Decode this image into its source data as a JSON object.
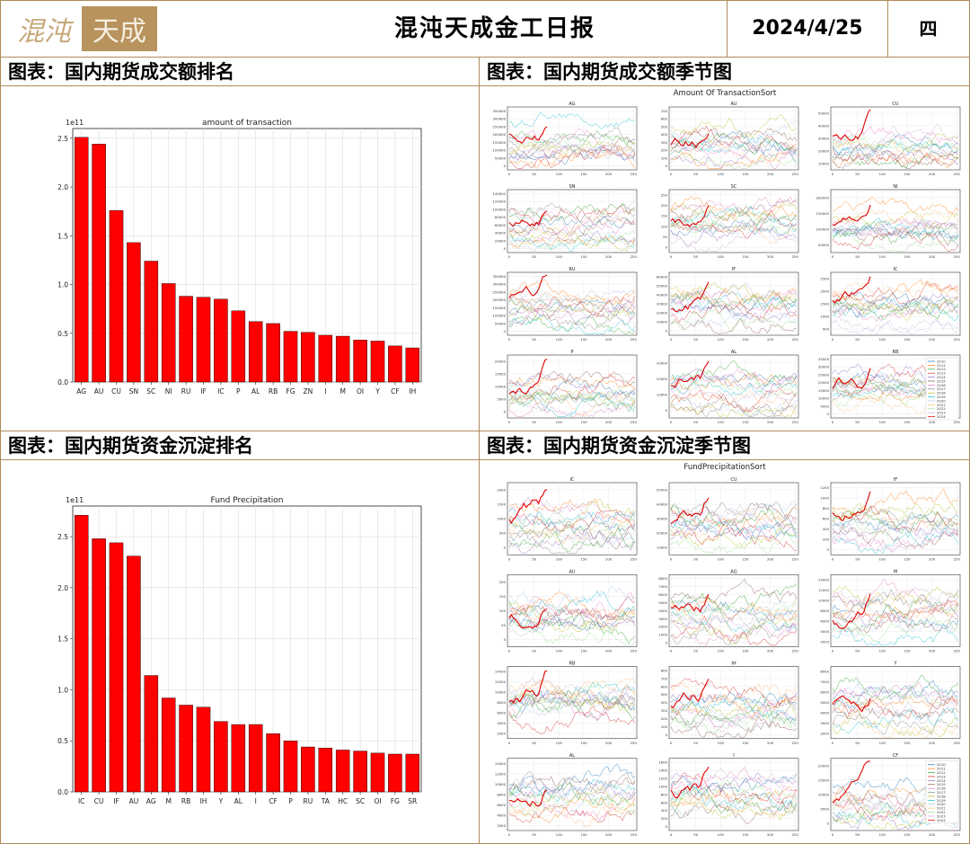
{
  "header": {
    "logo_text": "混沌天成",
    "title": "混沌天成金工日报",
    "date": "2024/4/25",
    "weekday": "四"
  },
  "panels": {
    "top_left_title": "图表：国内期货成交额排名",
    "top_right_title": "图表：国内期货成交额季节图",
    "bottom_left_title": "图表：国内期货资金沉淀排名",
    "bottom_right_title": "图表：国内期货资金沉淀季节图"
  },
  "colors": {
    "bar": "#ff0000",
    "frame": "#b08a5a",
    "latest_line": "#e00000"
  },
  "chart_data": [
    {
      "type": "bar",
      "title": "amount of transaction",
      "exponent_label": "1e11",
      "categories": [
        "AG",
        "AU",
        "CU",
        "SN",
        "SC",
        "NI",
        "RU",
        "IF",
        "IC",
        "P",
        "AL",
        "RB",
        "FG",
        "ZN",
        "I",
        "M",
        "OI",
        "Y",
        "CF",
        "IH"
      ],
      "values": [
        2.51,
        2.44,
        1.76,
        1.43,
        1.24,
        1.01,
        0.88,
        0.87,
        0.85,
        0.73,
        0.62,
        0.6,
        0.52,
        0.51,
        0.48,
        0.47,
        0.43,
        0.42,
        0.37,
        0.35
      ],
      "ylim": [
        0,
        2.6
      ],
      "yticks": [
        "0.0",
        "0.5",
        "1.0",
        "1.5",
        "2.0",
        "2.5"
      ],
      "grid": true
    },
    {
      "type": "bar",
      "title": "Fund Precipitation",
      "exponent_label": "1e11",
      "categories": [
        "IC",
        "CU",
        "IF",
        "AU",
        "AG",
        "M",
        "RB",
        "IH",
        "Y",
        "AL",
        "I",
        "CF",
        "P",
        "RU",
        "TA",
        "HC",
        "SC",
        "OI",
        "FG",
        "SR"
      ],
      "values": [
        2.71,
        2.48,
        2.44,
        2.31,
        1.14,
        0.92,
        0.85,
        0.83,
        0.69,
        0.66,
        0.66,
        0.57,
        0.5,
        0.44,
        0.43,
        0.41,
        0.4,
        0.38,
        0.37,
        0.37
      ],
      "ylim": [
        0,
        2.8
      ],
      "yticks": [
        "0.0",
        "0.5",
        "1.0",
        "1.5",
        "2.0",
        "2.5"
      ],
      "grid": true
    },
    {
      "type": "line",
      "title": "Amount Of TransactionSort",
      "subplots": [
        {
          "name": "AG",
          "yticks": [
            "0",
            "50000",
            "100000",
            "150000",
            "200000",
            "250000",
            "300000",
            "350000"
          ]
        },
        {
          "name": "AU",
          "yticks": [
            "0",
            "100",
            "200",
            "300",
            "400",
            "500",
            "600",
            "700"
          ]
        },
        {
          "name": "CU",
          "yticks": [
            "10000",
            "20000",
            "30000",
            "40000",
            "50000"
          ]
        },
        {
          "name": "SN",
          "yticks": [
            "0",
            "20000",
            "40000",
            "60000",
            "80000",
            "100000",
            "120000",
            "140000"
          ]
        },
        {
          "name": "SC",
          "yticks": [
            "0",
            "50",
            "100",
            "150",
            "200",
            "250"
          ]
        },
        {
          "name": "NI",
          "yticks": [
            "50000",
            "100000",
            "150000",
            "200000"
          ]
        },
        {
          "name": "RU",
          "yticks": [
            "0",
            "50000",
            "100000",
            "150000",
            "200000",
            "250000",
            "300000",
            "350000"
          ]
        },
        {
          "name": "IF",
          "yticks": [
            "0",
            "10000",
            "20000",
            "30000",
            "40000",
            "50000",
            "60000"
          ]
        },
        {
          "name": "IC",
          "yticks": [
            "500",
            "1000",
            "1500",
            "2000",
            "2500"
          ]
        },
        {
          "name": "P",
          "yticks": [
            "0",
            "5000",
            "10000",
            "15000",
            "20000"
          ]
        },
        {
          "name": "AL",
          "yticks": [
            "0",
            "10000",
            "20000",
            "30000"
          ]
        },
        {
          "name": "RB",
          "yticks": [
            "0",
            "5000",
            "10000",
            "15000",
            "20000",
            "25000",
            "30000",
            "35000"
          ]
        }
      ],
      "xticks": [
        "0",
        "50",
        "100",
        "150",
        "200",
        "250"
      ],
      "legend": [
        "2010",
        "2011",
        "2012",
        "2013",
        "2014",
        "2015",
        "2016",
        "2017",
        "2018",
        "2019",
        "2020",
        "2021",
        "2022",
        "2023",
        "2024"
      ],
      "legend_position": "right"
    },
    {
      "type": "line",
      "title": "FundPrecipitationSort",
      "subplots": [
        {
          "name": "IC",
          "yticks": [
            "0",
            "500",
            "1000",
            "1500",
            "2000"
          ]
        },
        {
          "name": "CU",
          "yticks": [
            "10000",
            "20000",
            "30000",
            "40000",
            "50000"
          ]
        },
        {
          "name": "IF",
          "yticks": [
            "0",
            "200",
            "400",
            "600",
            "800",
            "1000",
            "1200"
          ]
        },
        {
          "name": "AU",
          "yticks": [
            "0",
            "50",
            "100",
            "150",
            "200"
          ]
        },
        {
          "name": "AG",
          "yticks": [
            "0",
            "1000",
            "2000",
            "3000",
            "4000",
            "5000",
            "6000",
            "7000",
            "8000"
          ]
        },
        {
          "name": "M",
          "yticks": [
            "2000",
            "4000",
            "6000",
            "8000",
            "10000",
            "12000",
            "14000"
          ]
        },
        {
          "name": "RB",
          "yticks": [
            "2000",
            "4000",
            "6000",
            "8000",
            "10000",
            "12000",
            "14000"
          ]
        },
        {
          "name": "IH",
          "yticks": [
            "0",
            "100",
            "200",
            "300",
            "400",
            "500",
            "600",
            "700",
            "800"
          ]
        },
        {
          "name": "Y",
          "yticks": [
            "2000",
            "3000",
            "4000",
            "5000",
            "6000",
            "7000",
            "8000"
          ]
        },
        {
          "name": "AL",
          "yticks": [
            "2000",
            "4000",
            "6000",
            "8000",
            "10000",
            "12000",
            "14000"
          ]
        },
        {
          "name": "I",
          "yticks": [
            "0",
            "200",
            "400",
            "600",
            "800",
            "1000",
            "1200",
            "1400",
            "1600"
          ]
        },
        {
          "name": "CF",
          "yticks": [
            "0",
            "5000",
            "10000",
            "15000",
            "20000"
          ]
        }
      ],
      "xticks": [
        "0",
        "50",
        "100",
        "150",
        "200",
        "250"
      ],
      "legend": [
        "2010",
        "2011",
        "2012",
        "2013",
        "2014",
        "2015",
        "2016",
        "2017",
        "2018",
        "2019",
        "2020",
        "2021",
        "2022",
        "2023",
        "2024"
      ],
      "legend_position": "right"
    }
  ]
}
